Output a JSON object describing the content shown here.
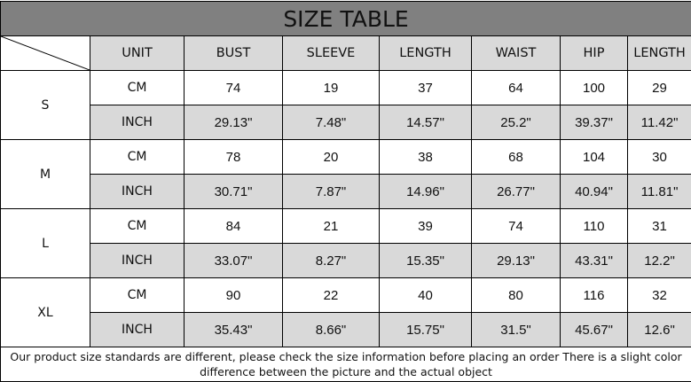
{
  "title": "SIZE TABLE",
  "headers": [
    "UNIT",
    "BUST",
    "SLEEVE",
    "LENGTH",
    "WAIST",
    "HIP",
    "LENGTH"
  ],
  "sizes": [
    {
      "size": "S",
      "rows": [
        [
          "CM",
          "74",
          "19",
          "37",
          "64",
          "100",
          "29"
        ],
        [
          "INCH",
          "29.13\"",
          "7.48\"",
          "14.57\"",
          "25.2\"",
          "39.37\"",
          "11.42\""
        ]
      ]
    },
    {
      "size": "M",
      "rows": [
        [
          "CM",
          "78",
          "20",
          "38",
          "68",
          "104",
          "30"
        ],
        [
          "INCH",
          "30.71\"",
          "7.87\"",
          "14.96\"",
          "26.77\"",
          "40.94\"",
          "11.81\""
        ]
      ]
    },
    {
      "size": "L",
      "rows": [
        [
          "CM",
          "84",
          "21",
          "39",
          "74",
          "110",
          "31"
        ],
        [
          "INCH",
          "33.07\"",
          "8.27\"",
          "15.35\"",
          "29.13\"",
          "43.31\"",
          "12.2\""
        ]
      ]
    },
    {
      "size": "XL",
      "rows": [
        [
          "CM",
          "90",
          "22",
          "40",
          "80",
          "116",
          "32"
        ],
        [
          "INCH",
          "35.43\"",
          "8.66\"",
          "15.75\"",
          "31.5\"",
          "45.67\"",
          "12.6\""
        ]
      ]
    }
  ],
  "footer": "Our product size standards are different, please check the size information before placing an order There is a slight color difference between the picture and the actual object",
  "colors": {
    "title_bg": "#808080",
    "header_bg": "#d9d9d9",
    "inch_row_bg": "#d9d9d9",
    "cm_row_bg": "#ffffff"
  }
}
